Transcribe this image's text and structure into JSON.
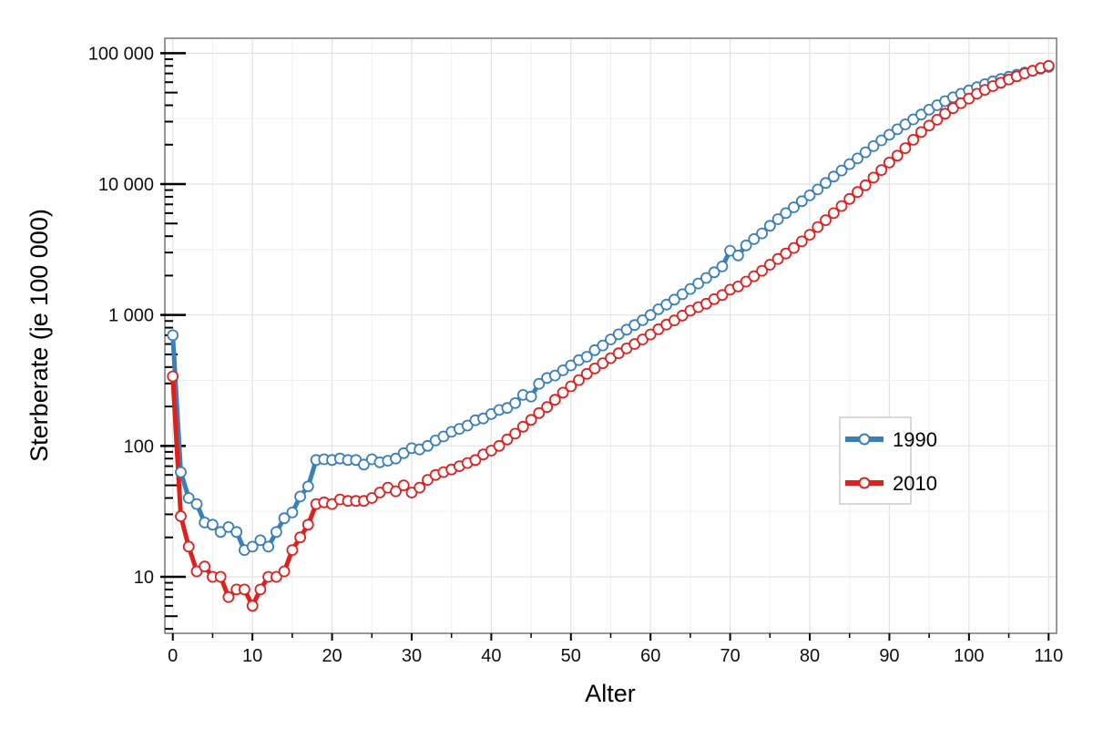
{
  "chart_data": {
    "type": "line",
    "title": "",
    "xlabel": "Alter",
    "ylabel": "Sterberate (je 100 000)",
    "xlim": [
      -1,
      111
    ],
    "ylim": [
      3.7,
      130000
    ],
    "yscale": "log",
    "grid": true,
    "legend_position": "right",
    "x_ticks": [
      0,
      10,
      20,
      30,
      40,
      50,
      60,
      70,
      80,
      90,
      100,
      110
    ],
    "x_tick_labels": [
      "0",
      "10",
      "20",
      "30",
      "40",
      "50",
      "60",
      "70",
      "80",
      "90",
      "100",
      "110"
    ],
    "y_ticks": [
      10,
      100,
      1000,
      10000,
      100000
    ],
    "y_tick_labels": [
      "10",
      "100",
      "1 000",
      "10 000",
      "100 000"
    ],
    "x": [
      0,
      1,
      2,
      3,
      4,
      5,
      6,
      7,
      8,
      9,
      10,
      11,
      12,
      13,
      14,
      15,
      16,
      17,
      18,
      19,
      20,
      21,
      22,
      23,
      24,
      25,
      26,
      27,
      28,
      29,
      30,
      31,
      32,
      33,
      34,
      35,
      36,
      37,
      38,
      39,
      40,
      41,
      42,
      43,
      44,
      45,
      46,
      47,
      48,
      49,
      50,
      51,
      52,
      53,
      54,
      55,
      56,
      57,
      58,
      59,
      60,
      61,
      62,
      63,
      64,
      65,
      66,
      67,
      68,
      69,
      70,
      71,
      72,
      73,
      74,
      75,
      76,
      77,
      78,
      79,
      80,
      81,
      82,
      83,
      84,
      85,
      86,
      87,
      88,
      89,
      90,
      91,
      92,
      93,
      94,
      95,
      96,
      97,
      98,
      99,
      100,
      101,
      102,
      103,
      104,
      105,
      106,
      107,
      108,
      109,
      110
    ],
    "series": [
      {
        "name": "1990",
        "color": "#3a7fb8",
        "values": [
          700,
          63,
          40,
          36,
          26,
          25,
          22,
          24,
          22,
          16,
          17,
          19,
          17,
          22,
          28,
          31,
          41,
          49,
          78,
          79,
          78,
          80,
          78,
          78,
          72,
          79,
          75,
          77,
          80,
          88,
          96,
          94,
          100,
          110,
          118,
          128,
          135,
          143,
          157,
          162,
          175,
          188,
          195,
          212,
          245,
          238,
          298,
          330,
          345,
          378,
          412,
          452,
          480,
          538,
          585,
          650,
          712,
          772,
          838,
          912,
          1000,
          1105,
          1200,
          1310,
          1440,
          1580,
          1740,
          1920,
          2120,
          2350,
          3100,
          2850,
          3400,
          3800,
          4200,
          4800,
          5400,
          6000,
          6650,
          7400,
          8200,
          9100,
          10200,
          11400,
          12700,
          14200,
          15700,
          17500,
          19500,
          21600,
          23800,
          26200,
          28600,
          31200,
          34000,
          37000,
          40000,
          43000,
          46000,
          49000,
          52000,
          55000,
          58000,
          61000,
          63500,
          66000,
          68500,
          71000,
          73500,
          76000,
          78500
        ]
      },
      {
        "name": "2010",
        "color": "#e0201f",
        "values": [
          340,
          29,
          17,
          11,
          12,
          10,
          10,
          7,
          8,
          8,
          6,
          8,
          10,
          10,
          11,
          16,
          20,
          25,
          36,
          37,
          36,
          39,
          38,
          38,
          38,
          40,
          44,
          48,
          45,
          50,
          44,
          48,
          55,
          60,
          63,
          66,
          70,
          74,
          78,
          86,
          92,
          100,
          112,
          124,
          140,
          158,
          178,
          198,
          225,
          255,
          285,
          318,
          355,
          390,
          428,
          468,
          510,
          555,
          600,
          650,
          710,
          778,
          845,
          910,
          990,
          1080,
          1150,
          1220,
          1320,
          1420,
          1560,
          1650,
          1800,
          1980,
          2180,
          2420,
          2680,
          2950,
          3250,
          3650,
          4100,
          4700,
          5300,
          6000,
          6800,
          7700,
          8700,
          9800,
          11200,
          12800,
          14600,
          16500,
          18800,
          21800,
          25000,
          28000,
          31000,
          34500,
          38000,
          41500,
          45000,
          49000,
          52500,
          56000,
          59500,
          63000,
          66500,
          70000,
          73500,
          77000,
          80000
        ]
      }
    ]
  }
}
